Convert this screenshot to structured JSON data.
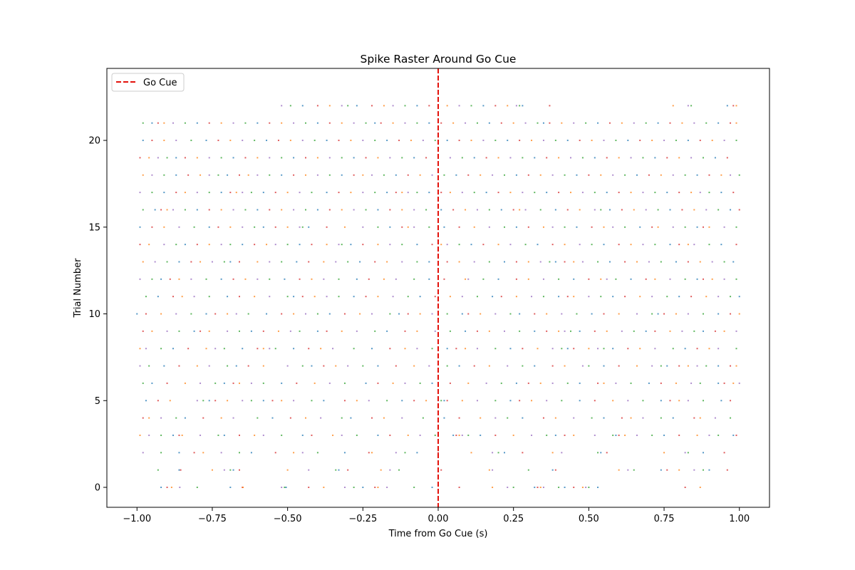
{
  "chart_data": {
    "type": "scatter",
    "title": "Spike Raster Around Go Cue",
    "xlabel": "Time from Go Cue (s)",
    "ylabel": "Trial Number",
    "xlim": [
      -1.1,
      1.1
    ],
    "ylim": [
      -1.15,
      24.15
    ],
    "xticks": [
      -1.0,
      -0.75,
      -0.5,
      -0.25,
      0.0,
      0.25,
      0.5,
      0.75,
      1.0
    ],
    "xtick_labels": [
      "−1.00",
      "−0.75",
      "−0.50",
      "−0.25",
      "0.00",
      "0.25",
      "0.50",
      "0.75",
      "1.00"
    ],
    "yticks": [
      0,
      5,
      10,
      15,
      20
    ],
    "ytick_labels": [
      "0",
      "5",
      "10",
      "15",
      "20"
    ],
    "legend": {
      "position": "top-left",
      "entries": [
        {
          "label": "Go Cue",
          "style": "dashed-line",
          "color": "#e3120b"
        }
      ]
    },
    "reference_line": {
      "x": 0.0,
      "label": "Go Cue",
      "color": "#e3120b",
      "style": "dashed"
    },
    "trials": [
      [
        -0.92,
        -0.9,
        -0.885,
        -0.858,
        -0.8,
        -0.69,
        -0.65,
        -0.648,
        -0.52,
        -0.51,
        -0.505,
        -0.43,
        -0.38,
        -0.31,
        -0.28,
        -0.25,
        -0.21,
        -0.2,
        -0.17,
        -0.08,
        -0.02,
        0.07,
        0.18,
        0.23,
        0.25,
        0.32,
        0.33,
        0.34,
        0.35,
        0.4,
        0.42,
        0.45,
        0.48,
        0.49,
        0.5,
        0.53,
        0.82,
        0.87
      ],
      [
        -0.93,
        -0.86,
        -0.855,
        -0.75,
        -0.71,
        -0.69,
        -0.68,
        -0.66,
        -0.5,
        -0.43,
        -0.34,
        -0.33,
        -0.3,
        -0.19,
        -0.16,
        -0.13,
        -0.0,
        0.01,
        0.17,
        0.18,
        0.3,
        0.38,
        0.39,
        0.6,
        0.63,
        0.65,
        0.74,
        0.76,
        0.8,
        0.85,
        0.88,
        0.9,
        0.96
      ],
      [
        -0.98,
        -0.92,
        -0.86,
        -0.81,
        -0.78,
        -0.72,
        -0.66,
        -0.62,
        -0.54,
        -0.48,
        -0.45,
        -0.4,
        -0.31,
        -0.23,
        -0.22,
        -0.14,
        -0.11,
        -0.07,
        0.0,
        0.11,
        0.18,
        0.2,
        0.22,
        0.28,
        0.38,
        0.41,
        0.53,
        0.54,
        0.56,
        0.75,
        0.82,
        0.83,
        0.88,
        0.95
      ],
      [
        -0.99,
        -0.96,
        -0.92,
        -0.88,
        -0.86,
        -0.85,
        -0.79,
        -0.73,
        -0.71,
        -0.66,
        -0.61,
        -0.58,
        -0.52,
        -0.45,
        -0.42,
        -0.35,
        -0.32,
        -0.27,
        -0.2,
        -0.16,
        -0.1,
        -0.06,
        -0.01,
        0.05,
        0.06,
        0.07,
        0.08,
        0.1,
        0.14,
        0.19,
        0.25,
        0.31,
        0.36,
        0.39,
        0.42,
        0.45,
        0.52,
        0.58,
        0.59,
        0.6,
        0.62,
        0.66,
        0.71,
        0.75,
        0.8,
        0.86,
        0.9,
        0.93,
        0.98,
        0.99
      ],
      [
        -0.98,
        -0.96,
        -0.92,
        -0.87,
        -0.84,
        -0.78,
        -0.72,
        -0.68,
        -0.6,
        -0.55,
        -0.49,
        -0.44,
        -0.39,
        -0.32,
        -0.29,
        -0.22,
        -0.18,
        -0.12,
        -0.05,
        0.02,
        0.07,
        0.14,
        0.19,
        0.23,
        0.28,
        0.35,
        0.39,
        0.45,
        0.51,
        0.55,
        0.61,
        0.64,
        0.68,
        0.74,
        0.78,
        0.85,
        0.87,
        0.92,
        0.97
      ],
      [
        -0.97,
        -0.93,
        -0.89,
        -0.8,
        -0.78,
        -0.76,
        -0.74,
        -0.7,
        -0.65,
        -0.62,
        -0.58,
        -0.55,
        -0.52,
        -0.48,
        -0.42,
        -0.38,
        -0.31,
        -0.27,
        -0.23,
        -0.17,
        -0.12,
        -0.08,
        -0.04,
        0.0,
        0.01,
        0.02,
        0.03,
        0.08,
        0.13,
        0.19,
        0.24,
        0.27,
        0.31,
        0.36,
        0.41,
        0.47,
        0.52,
        0.58,
        0.63,
        0.68,
        0.74,
        0.77,
        0.8,
        0.83,
        0.88,
        0.94,
        0.97
      ],
      [
        -0.98,
        -0.95,
        -0.9,
        -0.84,
        -0.79,
        -0.74,
        -0.71,
        -0.68,
        -0.66,
        -0.62,
        -0.58,
        -0.52,
        -0.47,
        -0.41,
        -0.36,
        -0.31,
        -0.24,
        -0.2,
        -0.15,
        -0.11,
        -0.06,
        -0.02,
        0.04,
        0.1,
        0.16,
        0.21,
        0.26,
        0.3,
        0.34,
        0.38,
        0.43,
        0.47,
        0.53,
        0.55,
        0.59,
        0.64,
        0.7,
        0.74,
        0.79,
        0.84,
        0.87,
        0.93,
        0.95,
        0.98,
        1.0
      ],
      [
        -0.99,
        -0.96,
        -0.91,
        -0.86,
        -0.8,
        -0.76,
        -0.7,
        -0.67,
        -0.63,
        -0.58,
        -0.5,
        -0.45,
        -0.42,
        -0.38,
        -0.34,
        -0.3,
        -0.25,
        -0.2,
        -0.14,
        -0.08,
        -0.03,
        0.03,
        0.07,
        0.12,
        0.17,
        0.23,
        0.28,
        0.32,
        0.38,
        0.42,
        0.48,
        0.5,
        0.55,
        0.6,
        0.66,
        0.71,
        0.74,
        0.76,
        0.8,
        0.83,
        0.86,
        0.89,
        0.93,
        0.97,
        0.99
      ],
      [
        -0.99,
        -0.97,
        -0.92,
        -0.88,
        -0.83,
        -0.77,
        -0.74,
        -0.71,
        -0.65,
        -0.6,
        -0.58,
        -0.56,
        -0.54,
        -0.48,
        -0.43,
        -0.39,
        -0.35,
        -0.28,
        -0.22,
        -0.16,
        -0.11,
        -0.07,
        -0.02,
        0.03,
        0.06,
        0.09,
        0.13,
        0.19,
        0.24,
        0.28,
        0.33,
        0.38,
        0.41,
        0.43,
        0.45,
        0.5,
        0.53,
        0.55,
        0.58,
        0.63,
        0.67,
        0.72,
        0.78,
        0.82,
        0.86,
        0.9,
        0.93,
        0.99
      ],
      [
        -0.98,
        -0.95,
        -0.9,
        -0.86,
        -0.81,
        -0.79,
        -0.76,
        -0.7,
        -0.66,
        -0.62,
        -0.58,
        -0.53,
        -0.49,
        -0.46,
        -0.4,
        -0.37,
        -0.32,
        -0.27,
        -0.21,
        -0.17,
        -0.11,
        -0.07,
        -0.01,
        0.04,
        0.09,
        0.13,
        0.17,
        0.22,
        0.27,
        0.32,
        0.36,
        0.4,
        0.42,
        0.44,
        0.47,
        0.52,
        0.56,
        0.61,
        0.65,
        0.69,
        0.72,
        0.77,
        0.81,
        0.85,
        0.88,
        0.92,
        0.95,
        0.99
      ],
      [
        -1.0,
        -0.97,
        -0.92,
        -0.87,
        -0.82,
        -0.77,
        -0.74,
        -0.7,
        -0.67,
        -0.63,
        -0.57,
        -0.52,
        -0.48,
        -0.44,
        -0.4,
        -0.36,
        -0.31,
        -0.26,
        -0.22,
        -0.16,
        -0.13,
        -0.1,
        -0.06,
        -0.02,
        0.03,
        0.08,
        0.1,
        0.14,
        0.19,
        0.24,
        0.27,
        0.32,
        0.36,
        0.41,
        0.46,
        0.51,
        0.55,
        0.6,
        0.66,
        0.71,
        0.73,
        0.75,
        0.79,
        0.83,
        0.88,
        0.93,
        0.97,
        1.0
      ],
      [
        -0.97,
        -0.93,
        -0.88,
        -0.85,
        -0.81,
        -0.76,
        -0.7,
        -0.66,
        -0.61,
        -0.56,
        -0.5,
        -0.48,
        -0.45,
        -0.41,
        -0.37,
        -0.33,
        -0.28,
        -0.24,
        -0.2,
        -0.15,
        -0.1,
        -0.06,
        -0.01,
        0.04,
        0.08,
        0.13,
        0.18,
        0.21,
        0.26,
        0.31,
        0.35,
        0.4,
        0.43,
        0.45,
        0.5,
        0.54,
        0.58,
        0.62,
        0.67,
        0.71,
        0.76,
        0.8,
        0.84,
        0.89,
        0.93,
        0.97,
        1.0
      ],
      [
        -0.99,
        -0.95,
        -0.92,
        -0.89,
        -0.86,
        -0.82,
        -0.77,
        -0.72,
        -0.68,
        -0.64,
        -0.6,
        -0.56,
        -0.51,
        -0.46,
        -0.42,
        -0.38,
        -0.33,
        -0.27,
        -0.23,
        -0.18,
        -0.14,
        -0.08,
        -0.03,
        0.02,
        0.09,
        0.1,
        0.15,
        0.2,
        0.26,
        0.3,
        0.35,
        0.4,
        0.45,
        0.5,
        0.54,
        0.56,
        0.59,
        0.64,
        0.69,
        0.72,
        0.77,
        0.82,
        0.86,
        0.88,
        0.91,
        0.95,
        0.99
      ],
      [
        -0.98,
        -0.94,
        -0.9,
        -0.86,
        -0.82,
        -0.79,
        -0.75,
        -0.71,
        -0.69,
        -0.66,
        -0.6,
        -0.56,
        -0.52,
        -0.47,
        -0.43,
        -0.38,
        -0.34,
        -0.3,
        -0.26,
        -0.21,
        -0.17,
        -0.12,
        -0.07,
        -0.03,
        0.03,
        0.07,
        0.12,
        0.17,
        0.22,
        0.26,
        0.3,
        0.34,
        0.37,
        0.39,
        0.42,
        0.45,
        0.48,
        0.53,
        0.57,
        0.62,
        0.66,
        0.7,
        0.74,
        0.79,
        0.83,
        0.87,
        0.91,
        0.95,
        0.98
      ],
      [
        -0.99,
        -0.96,
        -0.91,
        -0.87,
        -0.84,
        -0.8,
        -0.76,
        -0.72,
        -0.69,
        -0.65,
        -0.61,
        -0.57,
        -0.54,
        -0.5,
        -0.46,
        -0.42,
        -0.37,
        -0.33,
        -0.32,
        -0.29,
        -0.25,
        -0.2,
        -0.16,
        -0.12,
        -0.07,
        -0.02,
        0.01,
        0.03,
        0.07,
        0.11,
        0.15,
        0.2,
        0.24,
        0.29,
        0.33,
        0.38,
        0.42,
        0.47,
        0.51,
        0.55,
        0.6,
        0.64,
        0.68,
        0.72,
        0.77,
        0.8,
        0.83,
        0.85,
        0.9,
        0.94,
        0.99
      ],
      [
        -0.99,
        -0.95,
        -0.91,
        -0.86,
        -0.81,
        -0.76,
        -0.73,
        -0.69,
        -0.65,
        -0.61,
        -0.58,
        -0.54,
        -0.5,
        -0.46,
        -0.45,
        -0.43,
        -0.37,
        -0.31,
        -0.25,
        -0.2,
        -0.16,
        -0.12,
        -0.1,
        -0.08,
        -0.03,
        0.02,
        0.07,
        0.12,
        0.17,
        0.22,
        0.26,
        0.3,
        0.35,
        0.38,
        0.42,
        0.46,
        0.51,
        0.55,
        0.58,
        0.62,
        0.67,
        0.71,
        0.73,
        0.78,
        0.82,
        0.86,
        0.88,
        0.9,
        0.95,
        0.99
      ],
      [
        -0.98,
        -0.94,
        -0.92,
        -0.9,
        -0.88,
        -0.84,
        -0.8,
        -0.76,
        -0.72,
        -0.68,
        -0.64,
        -0.6,
        -0.56,
        -0.52,
        -0.48,
        -0.44,
        -0.4,
        -0.36,
        -0.32,
        -0.28,
        -0.24,
        -0.2,
        -0.16,
        -0.12,
        -0.08,
        -0.04,
        0.01,
        0.05,
        0.09,
        0.13,
        0.17,
        0.21,
        0.25,
        0.27,
        0.29,
        0.34,
        0.39,
        0.43,
        0.47,
        0.52,
        0.54,
        0.57,
        0.61,
        0.65,
        0.69,
        0.73,
        0.77,
        0.81,
        0.85,
        0.89,
        0.93,
        0.97,
        1.0
      ],
      [
        -0.99,
        -0.95,
        -0.91,
        -0.87,
        -0.84,
        -0.8,
        -0.76,
        -0.72,
        -0.69,
        -0.67,
        -0.65,
        -0.62,
        -0.58,
        -0.54,
        -0.5,
        -0.46,
        -0.42,
        -0.37,
        -0.33,
        -0.29,
        -0.25,
        -0.21,
        -0.17,
        -0.14,
        -0.12,
        -0.1,
        -0.07,
        -0.03,
        0.01,
        0.04,
        0.08,
        0.12,
        0.16,
        0.2,
        0.24,
        0.28,
        0.32,
        0.36,
        0.4,
        0.44,
        0.48,
        0.52,
        0.56,
        0.6,
        0.64,
        0.68,
        0.72,
        0.76,
        0.8,
        0.84,
        0.87,
        0.9,
        0.94,
        0.98
      ],
      [
        -0.98,
        -0.95,
        -0.91,
        -0.87,
        -0.83,
        -0.79,
        -0.76,
        -0.73,
        -0.7,
        -0.66,
        -0.63,
        -0.6,
        -0.56,
        -0.52,
        -0.48,
        -0.44,
        -0.4,
        -0.36,
        -0.32,
        -0.28,
        -0.25,
        -0.22,
        -0.18,
        -0.14,
        -0.1,
        -0.06,
        -0.02,
        0.02,
        0.06,
        0.1,
        0.14,
        0.18,
        0.22,
        0.26,
        0.3,
        0.34,
        0.38,
        0.42,
        0.46,
        0.5,
        0.54,
        0.58,
        0.62,
        0.66,
        0.7,
        0.74,
        0.78,
        0.82,
        0.86,
        0.9,
        0.94,
        0.97,
        1.0
      ],
      [
        -0.99,
        -0.96,
        -0.93,
        -0.9,
        -0.87,
        -0.84,
        -0.8,
        -0.76,
        -0.72,
        -0.68,
        -0.64,
        -0.6,
        -0.56,
        -0.52,
        -0.48,
        -0.44,
        -0.4,
        -0.36,
        -0.32,
        -0.28,
        -0.24,
        -0.2,
        -0.16,
        -0.12,
        -0.08,
        -0.04,
        0.0,
        0.04,
        0.08,
        0.12,
        0.16,
        0.2,
        0.24,
        0.28,
        0.32,
        0.36,
        0.4,
        0.44,
        0.48,
        0.52,
        0.56,
        0.6,
        0.64,
        0.68,
        0.72,
        0.76,
        0.8,
        0.84,
        0.88,
        0.92,
        0.96
      ],
      [
        -0.98,
        -0.95,
        -0.91,
        -0.87,
        -0.82,
        -0.77,
        -0.73,
        -0.69,
        -0.65,
        -0.61,
        -0.57,
        -0.53,
        -0.49,
        -0.45,
        -0.41,
        -0.37,
        -0.33,
        -0.29,
        -0.25,
        -0.21,
        -0.17,
        -0.13,
        -0.09,
        -0.05,
        -0.01,
        0.03,
        0.07,
        0.11,
        0.15,
        0.19,
        0.23,
        0.27,
        0.31,
        0.35,
        0.39,
        0.43,
        0.47,
        0.51,
        0.55,
        0.59,
        0.63,
        0.67,
        0.71,
        0.75,
        0.79,
        0.83,
        0.87,
        0.91,
        0.95,
        0.99
      ],
      [
        -0.98,
        -0.95,
        -0.93,
        -0.91,
        -0.88,
        -0.84,
        -0.8,
        -0.76,
        -0.72,
        -0.68,
        -0.64,
        -0.6,
        -0.56,
        -0.52,
        -0.48,
        -0.44,
        -0.4,
        -0.36,
        -0.32,
        -0.28,
        -0.24,
        -0.21,
        -0.19,
        -0.15,
        -0.11,
        -0.07,
        -0.03,
        0.01,
        0.05,
        0.09,
        0.13,
        0.17,
        0.21,
        0.25,
        0.29,
        0.33,
        0.35,
        0.37,
        0.41,
        0.45,
        0.49,
        0.53,
        0.57,
        0.61,
        0.65,
        0.69,
        0.73,
        0.77,
        0.81,
        0.85,
        0.89,
        0.93,
        0.97,
        0.99
      ],
      [
        -0.52,
        -0.49,
        -0.45,
        -0.4,
        -0.36,
        -0.32,
        -0.3,
        -0.27,
        -0.22,
        -0.18,
        -0.15,
        -0.11,
        -0.07,
        -0.03,
        0.03,
        0.07,
        0.11,
        0.15,
        0.19,
        0.23,
        0.26,
        0.27,
        0.28,
        0.37,
        0.78,
        0.83,
        0.84,
        0.96,
        0.98,
        0.99
      ]
    ]
  },
  "colors": {
    "palette": [
      "#1f77b4",
      "#ff7f0e",
      "#2ca02c",
      "#d62728",
      "#9467bd"
    ],
    "go_cue": "#e3120b"
  }
}
